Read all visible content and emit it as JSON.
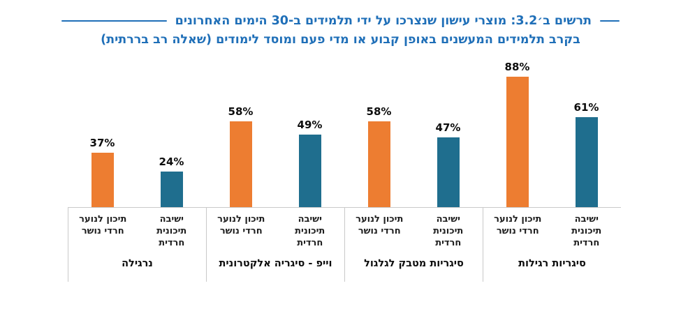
{
  "title": {
    "line1": "תרשים ב׳3.2: מוצרי עישון שנצרכו על ידי תלמידים ב-30 הימים האחרונים",
    "line2": "בקרב תלמידים המעשנים באופן קבוע או מדי פעם ומוסד לימודים (שאלה רב בררתית)"
  },
  "colors": {
    "title_blue": "#1f6fb8",
    "series_dropout_highschool": "#ed7d31",
    "series_haredi_yeshiva": "#1f6e8e",
    "axis_line": "#c9c9c9"
  },
  "chart_data": {
    "type": "bar",
    "title": "תרשים ב׳3.2: מוצרי עישון שנצרכו על ידי תלמידים ב-30 הימים האחרונים בקרב תלמידים המעשנים באופן קבוע או מדי פעם ומוסד לימודים (שאלה רב בררתית)",
    "xlabel": "",
    "ylabel": "",
    "ylim": [
      0,
      100
    ],
    "grid": false,
    "legend_position": "none (series labels shown under each bar)",
    "visual_order": "groups listed left-to-right as displayed; reading order is RTL",
    "value_suffix": "%",
    "series": [
      {
        "name": "תיכון לנוער חרדי נושר",
        "color": "#ed7d31"
      },
      {
        "name": "ישיבה תיכונית חרדית",
        "color": "#1f6e8e"
      }
    ],
    "categories": [
      "נרגילה",
      "וייפ - סיגריה אלקטרונית",
      "סיגריות מטבק לגלגול",
      "סיגריות רגילות"
    ],
    "groups": [
      {
        "category": "נרגילה",
        "values": [
          37,
          24
        ]
      },
      {
        "category": "וייפ - סיגריה אלקטרונית",
        "values": [
          58,
          49
        ]
      },
      {
        "category": "סיגריות מטבק לגלגול",
        "values": [
          58,
          47
        ]
      },
      {
        "category": "סיגריות רגילות",
        "values": [
          88,
          61
        ]
      }
    ]
  }
}
